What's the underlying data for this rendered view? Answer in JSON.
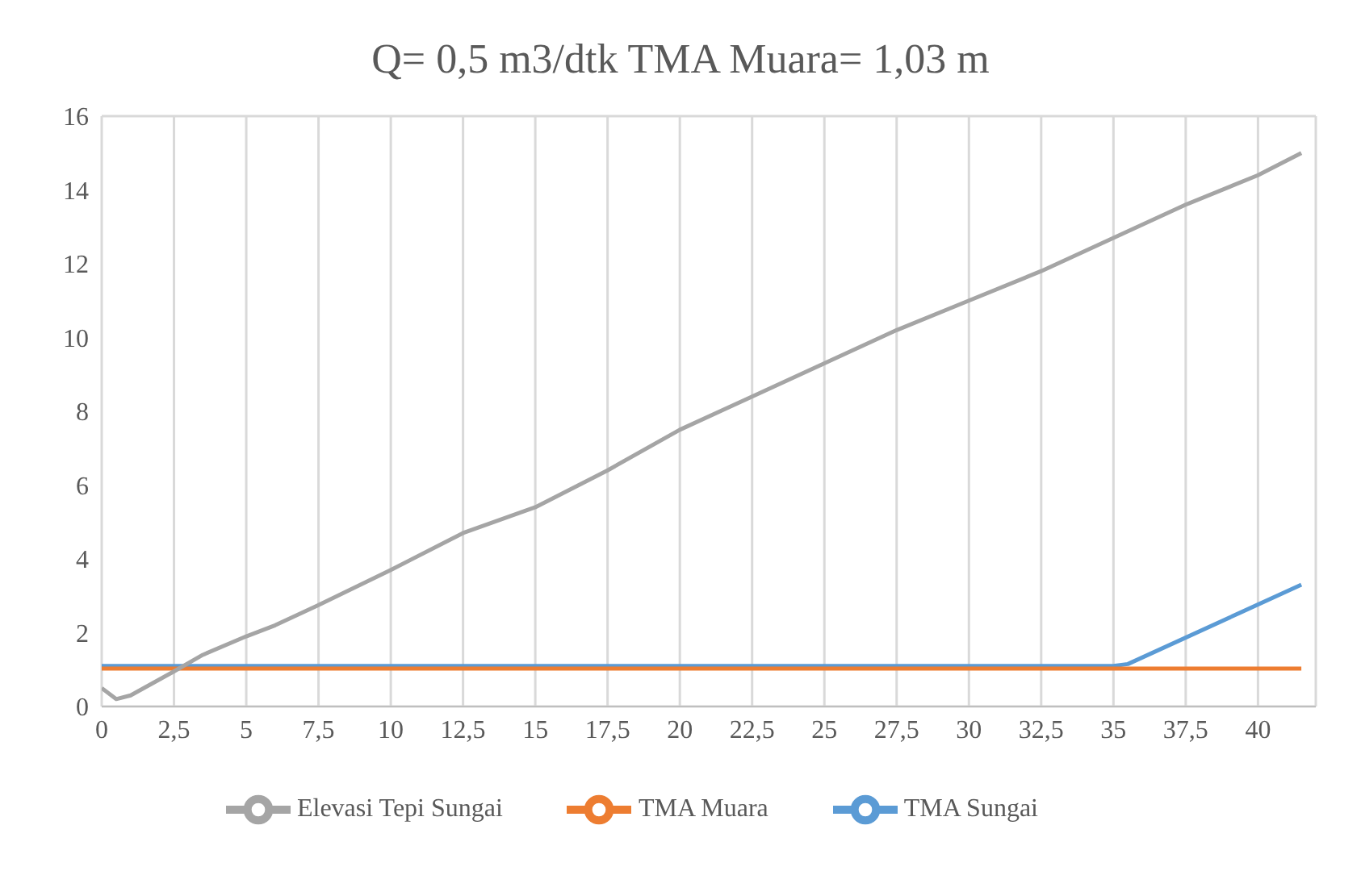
{
  "chart_data": {
    "type": "line",
    "title": "Q= 0,5 m3/dtk TMA Muara= 1,03 m",
    "series": [
      {
        "name": "TMA Sungai",
        "color": "#5b9bd5",
        "x": [
          0,
          35,
          35.5,
          41.5
        ],
        "values": [
          1.1,
          1.1,
          1.15,
          3.3
        ]
      },
      {
        "name": "TMA Muara",
        "color": "#ed7d31",
        "x": [
          0,
          41.5
        ],
        "values": [
          1.03,
          1.03
        ]
      },
      {
        "name": "Elevasi Tepi Sungai",
        "color": "#a5a5a5",
        "x": [
          0,
          0.5,
          1,
          2.5,
          3.5,
          5,
          6,
          7.5,
          10,
          12.5,
          15,
          17.5,
          20,
          22.5,
          25,
          27.5,
          30,
          32.5,
          35,
          37.5,
          40,
          41.5
        ],
        "values": [
          0.5,
          0.2,
          0.3,
          0.95,
          1.4,
          1.9,
          2.2,
          2.75,
          3.7,
          4.7,
          5.4,
          6.4,
          7.5,
          8.4,
          9.3,
          10.2,
          11,
          11.8,
          12.7,
          13.6,
          14.4,
          15
        ]
      }
    ],
    "xlim": [
      0,
      42
    ],
    "xticks": [
      0,
      {
        "value": 2.5,
        "label": "2,5"
      },
      5,
      {
        "value": 7.5,
        "label": "7,5"
      },
      10,
      {
        "value": 12.5,
        "label": "12,5"
      },
      15,
      {
        "value": 17.5,
        "label": "17,5"
      },
      20,
      {
        "value": 22.5,
        "label": "22,5"
      },
      25,
      {
        "value": 27.5,
        "label": "27,5"
      },
      30,
      {
        "value": 32.5,
        "label": "32,5"
      },
      35,
      {
        "value": 37.5,
        "label": "37,5"
      },
      40
    ],
    "ylim": [
      0,
      16
    ],
    "yticks": [
      0,
      2,
      4,
      6,
      8,
      10,
      12,
      14,
      16
    ],
    "grid": true,
    "legend": "bottom",
    "marker": "none",
    "line_style": "solid"
  }
}
